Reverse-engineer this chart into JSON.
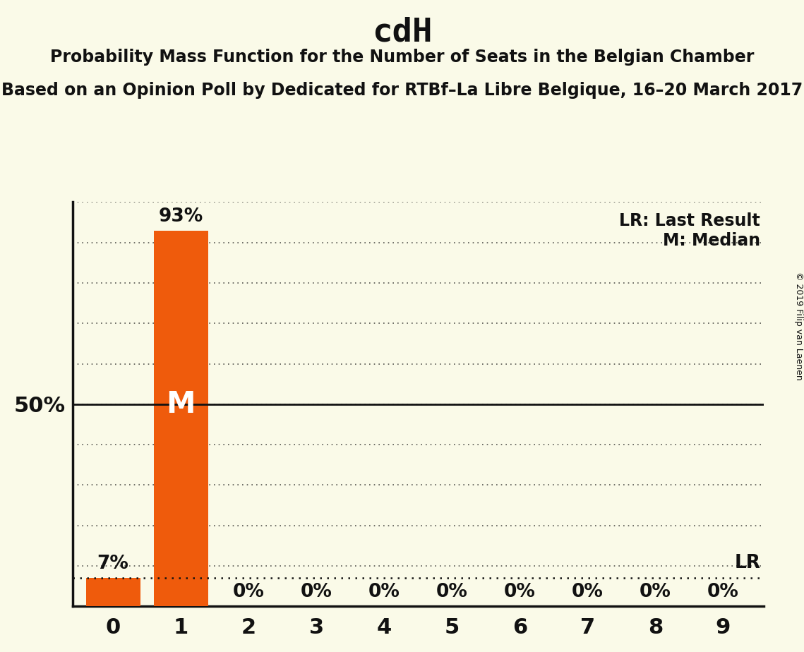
{
  "title": "cdH",
  "subtitle1": "Probability Mass Function for the Number of Seats in the Belgian Chamber",
  "subtitle2": "Based on an Opinion Poll by Dedicated for RTBf–La Libre Belgique, 16–20 March 2017",
  "copyright": "© 2019 Filip van Laenen",
  "categories": [
    0,
    1,
    2,
    3,
    4,
    5,
    6,
    7,
    8,
    9
  ],
  "values": [
    0.07,
    0.93,
    0.0,
    0.0,
    0.0,
    0.0,
    0.0,
    0.0,
    0.0,
    0.0
  ],
  "bar_color": "#EF5B0C",
  "background_color": "#FAFAE8",
  "text_color": "#111111",
  "median_bar_index": 1,
  "lr_value": 0.07,
  "fifty_pct_line": 0.5,
  "ylim": [
    0,
    1.0
  ],
  "legend_lr": "LR: Last Result",
  "legend_m": "M: Median",
  "bar_labels": [
    "7%",
    "93%",
    "0%",
    "0%",
    "0%",
    "0%",
    "0%",
    "0%",
    "0%",
    "0%"
  ],
  "grid_yticks": [
    0.1,
    0.2,
    0.3,
    0.4,
    0.5,
    0.6,
    0.7,
    0.8,
    0.9,
    1.0
  ],
  "fifty_label": "50%",
  "title_fontsize": 34,
  "subtitle_fontsize": 17,
  "bar_label_fontsize": 19,
  "tick_fontsize": 22,
  "ytick_fontsize": 22,
  "legend_fontsize": 17,
  "median_label_fontsize": 30,
  "lr_label_fontsize": 19
}
